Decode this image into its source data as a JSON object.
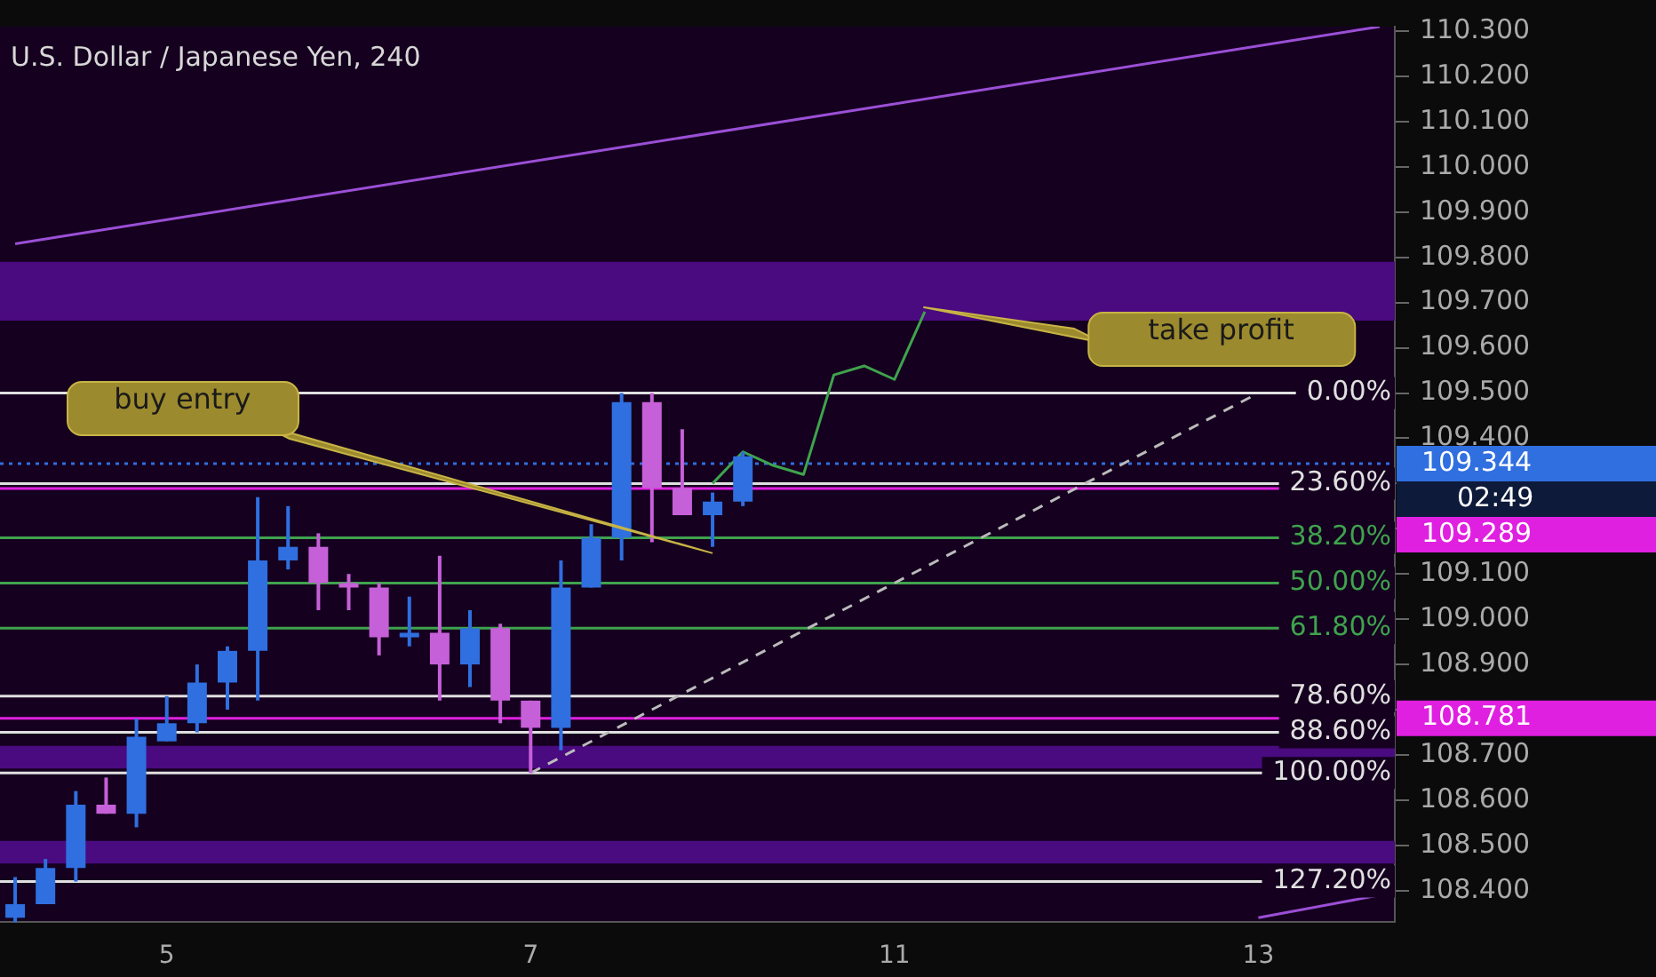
{
  "chart_data": {
    "type": "candlestick",
    "title": "U.S. Dollar / Japanese Yen, 240",
    "categories": [
      null,
      null,
      null,
      null,
      null,
      "5",
      null,
      null,
      null,
      null,
      null,
      null,
      null,
      null,
      null,
      null,
      null,
      "7",
      null,
      null,
      null,
      null,
      null,
      null,
      null,
      null,
      null,
      null,
      null,
      "11",
      null,
      null,
      null,
      null,
      null,
      null,
      null,
      null,
      null,
      null,
      null,
      "13",
      null,
      null,
      null,
      null
    ],
    "ohlc": [
      [
        108.34,
        108.43,
        108.33,
        108.37
      ],
      [
        108.37,
        108.47,
        108.37,
        108.45
      ],
      [
        108.45,
        108.62,
        108.42,
        108.59
      ],
      [
        108.59,
        108.65,
        108.57,
        108.57
      ],
      [
        108.57,
        108.78,
        108.54,
        108.74
      ],
      [
        108.73,
        108.83,
        108.73,
        108.77
      ],
      [
        108.77,
        108.9,
        108.75,
        108.86
      ],
      [
        108.86,
        108.94,
        108.8,
        108.93
      ],
      [
        108.93,
        109.27,
        108.82,
        109.13
      ],
      [
        109.13,
        109.25,
        109.11,
        109.16
      ],
      [
        109.16,
        109.19,
        109.02,
        109.08
      ],
      [
        109.08,
        109.1,
        109.02,
        109.07
      ],
      [
        109.07,
        109.08,
        108.92,
        108.96
      ],
      [
        108.96,
        109.05,
        108.94,
        108.97
      ],
      [
        108.97,
        109.14,
        108.82,
        108.9
      ],
      [
        108.9,
        109.02,
        108.85,
        108.98
      ],
      [
        108.98,
        108.99,
        108.77,
        108.82
      ],
      [
        108.82,
        108.82,
        108.66,
        108.76
      ],
      [
        108.76,
        109.13,
        108.71,
        109.07
      ],
      [
        109.07,
        109.21,
        109.07,
        109.18
      ],
      [
        109.18,
        109.5,
        109.13,
        109.48
      ],
      [
        109.48,
        109.5,
        109.17,
        109.29
      ],
      [
        109.29,
        109.42,
        109.23,
        109.23
      ],
      [
        109.23,
        109.28,
        109.16,
        109.26
      ],
      [
        109.26,
        109.37,
        109.25,
        109.36
      ],
      null,
      null,
      null,
      null,
      null,
      null,
      null,
      null,
      null,
      null,
      null,
      null,
      null,
      null,
      null,
      null,
      null,
      null,
      null,
      null,
      null
    ],
    "colors": [
      "#2f6fe0",
      "#2f6fe0",
      "#2f6fe0",
      "#c660d8",
      "#2f6fe0",
      "#2f6fe0",
      "#2f6fe0",
      "#2f6fe0",
      "#2f6fe0",
      "#2f6fe0",
      "#c660d8",
      "#c660d8",
      "#c660d8",
      "#2f6fe0",
      "#c660d8",
      "#2f6fe0",
      "#c660d8",
      "#c660d8",
      "#2f6fe0",
      "#2f6fe0",
      "#2f6fe0",
      "#c660d8",
      "#c660d8",
      "#2f6fe0",
      "#2f6fe0",
      null,
      null,
      null,
      null,
      null,
      null,
      null,
      null,
      null,
      null,
      null,
      null,
      null,
      null,
      null,
      null,
      null,
      null,
      null,
      null,
      null
    ],
    "series": [
      {
        "type": "line",
        "color": "#9b4fd6",
        "values": [
          109.83,
          null,
          null,
          null,
          null,
          null,
          null,
          null,
          null,
          null,
          null,
          null,
          null,
          null,
          null,
          null,
          null,
          null,
          null,
          null,
          null,
          null,
          null,
          null,
          null,
          null,
          null,
          null,
          null,
          null,
          null,
          null,
          null,
          null,
          null,
          null,
          null,
          null,
          null,
          null,
          null,
          null,
          null,
          null,
          null,
          110.31
        ]
      },
      {
        "type": "line",
        "color": "#9b4fd6",
        "values": [
          null,
          null,
          null,
          null,
          null,
          null,
          null,
          null,
          null,
          null,
          null,
          null,
          null,
          null,
          null,
          null,
          null,
          null,
          null,
          null,
          null,
          null,
          null,
          null,
          null,
          null,
          null,
          null,
          null,
          null,
          null,
          null,
          null,
          null,
          null,
          null,
          null,
          null,
          null,
          null,
          null,
          108.34,
          null,
          null,
          null,
          108.39
        ]
      },
      {
        "type": "line",
        "color": "#bbbbbb",
        "line_style": "dashed",
        "values": [
          null,
          null,
          null,
          null,
          null,
          null,
          null,
          null,
          null,
          null,
          null,
          null,
          null,
          null,
          null,
          null,
          null,
          108.66,
          null,
          null,
          null,
          null,
          null,
          null,
          null,
          null,
          null,
          null,
          null,
          null,
          null,
          null,
          null,
          null,
          null,
          null,
          null,
          null,
          null,
          null,
          null,
          109.5,
          null,
          null,
          null,
          null
        ]
      },
      {
        "type": "line",
        "color": "#3fa34d",
        "values": [
          null,
          null,
          null,
          null,
          null,
          null,
          null,
          null,
          null,
          null,
          null,
          null,
          null,
          null,
          null,
          null,
          null,
          null,
          null,
          null,
          null,
          null,
          null,
          109.3,
          109.37,
          109.34,
          109.32,
          109.54,
          109.56,
          109.53,
          109.68,
          null,
          null,
          null,
          null,
          null,
          null,
          null,
          null,
          null,
          null,
          null,
          null,
          null,
          null,
          null
        ]
      }
    ],
    "ylim": [
      108.33,
      110.31
    ],
    "yticks": [
      {
        "value": 108.4,
        "label": "108.400"
      },
      {
        "value": 108.5,
        "label": "108.500"
      },
      {
        "value": 108.6,
        "label": "108.600"
      },
      {
        "value": 108.7,
        "label": "108.700"
      },
      {
        "value": 108.8,
        "label": null
      },
      {
        "value": 108.9,
        "label": "108.900"
      },
      {
        "value": 109.0,
        "label": "109.000"
      },
      {
        "value": 109.1,
        "label": "109.100"
      },
      {
        "value": 109.2,
        "label": null
      },
      {
        "value": 109.3,
        "label": null
      },
      {
        "value": 109.4,
        "label": "109.400"
      },
      {
        "value": 109.5,
        "label": "109.500"
      },
      {
        "value": 109.6,
        "label": "109.600"
      },
      {
        "value": 109.7,
        "label": "109.700"
      },
      {
        "value": 109.8,
        "label": "109.800"
      },
      {
        "value": 109.9,
        "label": "109.900"
      },
      {
        "value": 110.0,
        "label": "110.000"
      },
      {
        "value": 110.1,
        "label": "110.100"
      },
      {
        "value": 110.2,
        "label": "110.200"
      },
      {
        "value": 110.3,
        "label": "110.300"
      }
    ],
    "bands": [
      {
        "axis": "y",
        "from": 109.66,
        "to": 109.79,
        "color": "#4a0a80"
      },
      {
        "axis": "y",
        "from": 108.46,
        "to": 108.51,
        "color": "#4a0a80"
      },
      {
        "axis": "y",
        "from": 108.67,
        "to": 108.72,
        "color": "#4a0a80"
      }
    ],
    "ref_lines": [
      {
        "axis": "y",
        "value": 109.5,
        "color": "#e0e0e0"
      },
      {
        "axis": "y",
        "value": 109.3,
        "color": "#e0e0e0"
      },
      {
        "axis": "y",
        "value": 109.18,
        "color": "#3fa34d"
      },
      {
        "axis": "y",
        "value": 109.08,
        "color": "#3fa34d"
      },
      {
        "axis": "y",
        "value": 108.98,
        "color": "#3fa34d"
      },
      {
        "axis": "y",
        "value": 108.83,
        "color": "#e0e0e0"
      },
      {
        "axis": "y",
        "value": 108.75,
        "color": "#e0e0e0"
      },
      {
        "axis": "y",
        "value": 108.66,
        "color": "#e0e0e0"
      },
      {
        "axis": "y",
        "value": 108.42,
        "color": "#e0e0e0"
      },
      {
        "axis": "y",
        "value": 109.344,
        "label": "109.344",
        "color": "#2f6fe0",
        "line_style": "dotted"
      },
      {
        "axis": "y",
        "value": 109.289,
        "label": "109.289",
        "color": "#e020e0",
        "line_style": "solid"
      },
      {
        "axis": "y",
        "value": 108.781,
        "label": "108.781",
        "color": "#e020e0",
        "line_style": "solid"
      }
    ],
    "annotations": [
      {
        "text": "0.00%",
        "y": 109.5
      },
      {
        "text": "23.60%",
        "y": 109.3
      },
      {
        "text": "38.20%",
        "y": 109.18
      },
      {
        "text": "50.00%",
        "y": 109.08
      },
      {
        "text": "61.80%",
        "y": 108.98
      },
      {
        "text": "78.60%",
        "y": 108.83
      },
      {
        "text": "88.60%",
        "y": 108.75
      },
      {
        "text": "100.00%",
        "y": 108.66
      },
      {
        "text": "127.20%",
        "y": 108.42
      },
      "buy entry",
      "take profit",
      "02:49"
    ],
    "grid": false,
    "legend": false,
    "marker": "none"
  }
}
